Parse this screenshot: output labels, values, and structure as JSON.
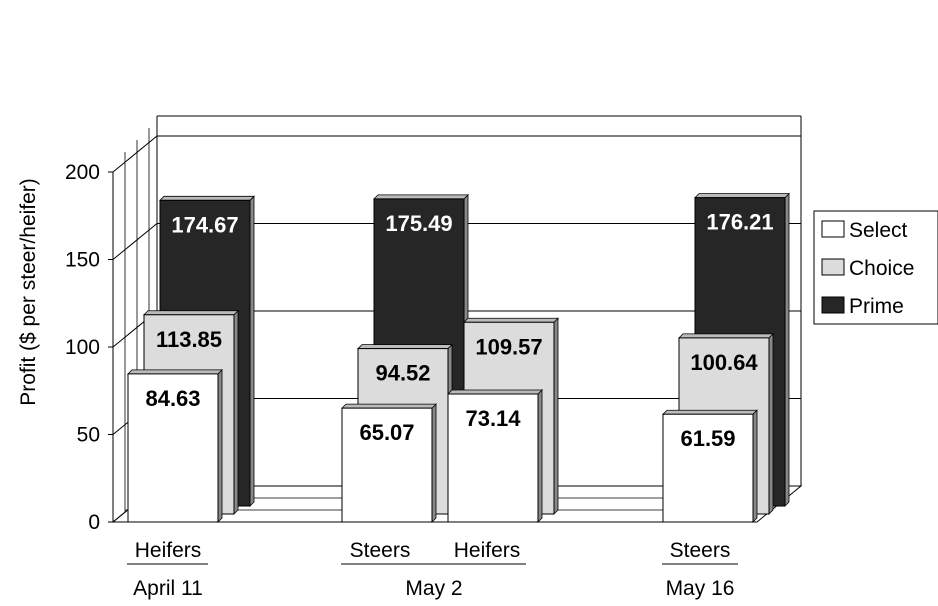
{
  "chart_data": {
    "type": "bar",
    "ylabel": "Profit ($ per steer/heifer)",
    "ylim": [
      0,
      200
    ],
    "yticks": [
      0,
      50,
      100,
      150,
      200
    ],
    "grid": true,
    "legend_position": "right",
    "groups": [
      {
        "label": "April 11",
        "categories": [
          "Heifers"
        ]
      },
      {
        "label": "May 2",
        "categories": [
          "Steers",
          "Heifers"
        ]
      },
      {
        "label": "May 16",
        "categories": [
          "Steers"
        ]
      }
    ],
    "categories": [
      "Heifers",
      "Steers",
      "Heifers",
      "Steers"
    ],
    "series": [
      {
        "name": "Select",
        "color": "#ffffff",
        "values": [
          84.63,
          65.07,
          73.14,
          61.59
        ]
      },
      {
        "name": "Choice",
        "color": "#dcdcdc",
        "values": [
          113.85,
          94.52,
          109.57,
          100.64
        ]
      },
      {
        "name": "Prime",
        "color": "#262626",
        "values": [
          174.67,
          175.49,
          null,
          176.21
        ]
      }
    ],
    "data_labels": {
      "Select": [
        "84.63",
        "65.07",
        "73.14",
        "61.59"
      ],
      "Choice": [
        "113.85",
        "94.52",
        "109.57",
        "100.64"
      ],
      "Prime": [
        "174.67",
        "175.49",
        null,
        "176.21"
      ]
    }
  }
}
